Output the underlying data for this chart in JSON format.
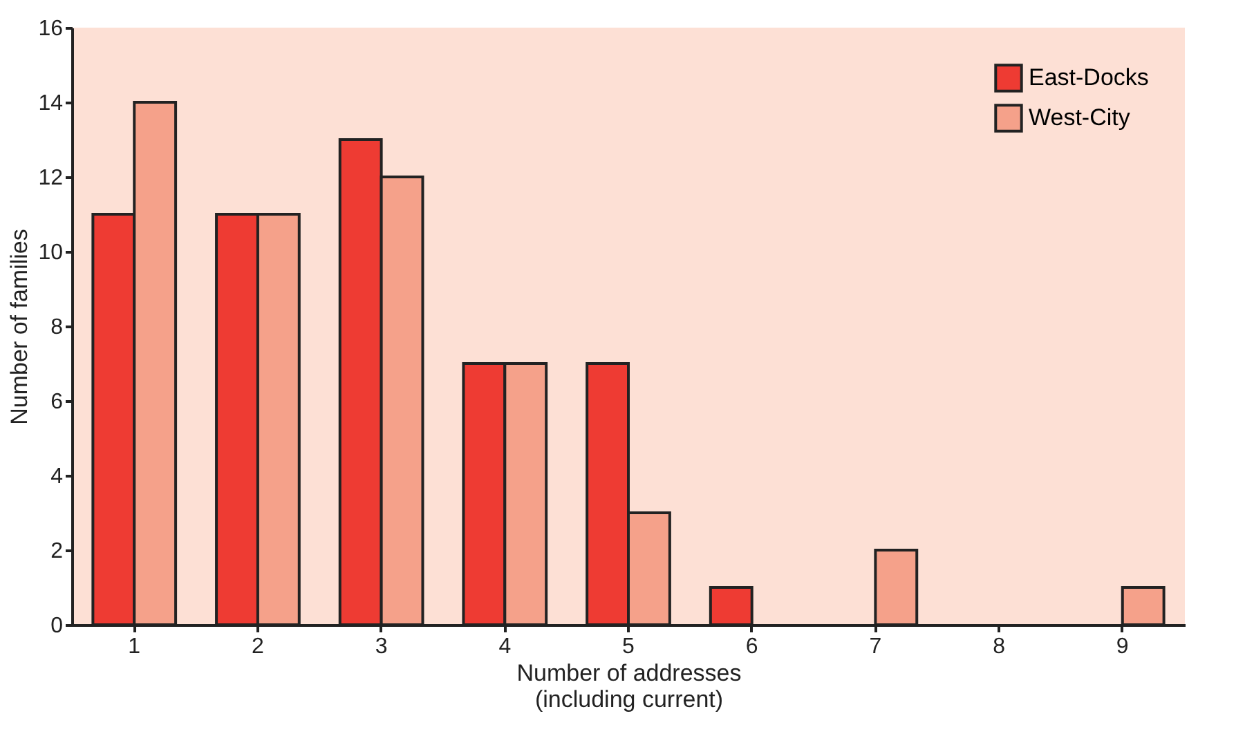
{
  "chart_data": {
    "type": "bar",
    "categories": [
      "1",
      "2",
      "3",
      "4",
      "5",
      "6",
      "7",
      "8",
      "9"
    ],
    "series": [
      {
        "name": "East-Docks",
        "color": "#ee3b33",
        "values": [
          11,
          11,
          13,
          7,
          7,
          1,
          0,
          0,
          0
        ]
      },
      {
        "name": "West-City",
        "color": "#f5a18a",
        "values": [
          14,
          11,
          12,
          7,
          3,
          0,
          2,
          0,
          1
        ]
      }
    ],
    "xlabel": "Number of addresses\n(including current)",
    "ylabel": "Number of families",
    "ylim": [
      0,
      16
    ],
    "yticks": [
      0,
      2,
      4,
      6,
      8,
      10,
      12,
      14,
      16
    ],
    "grid": false,
    "legend": "top right"
  }
}
